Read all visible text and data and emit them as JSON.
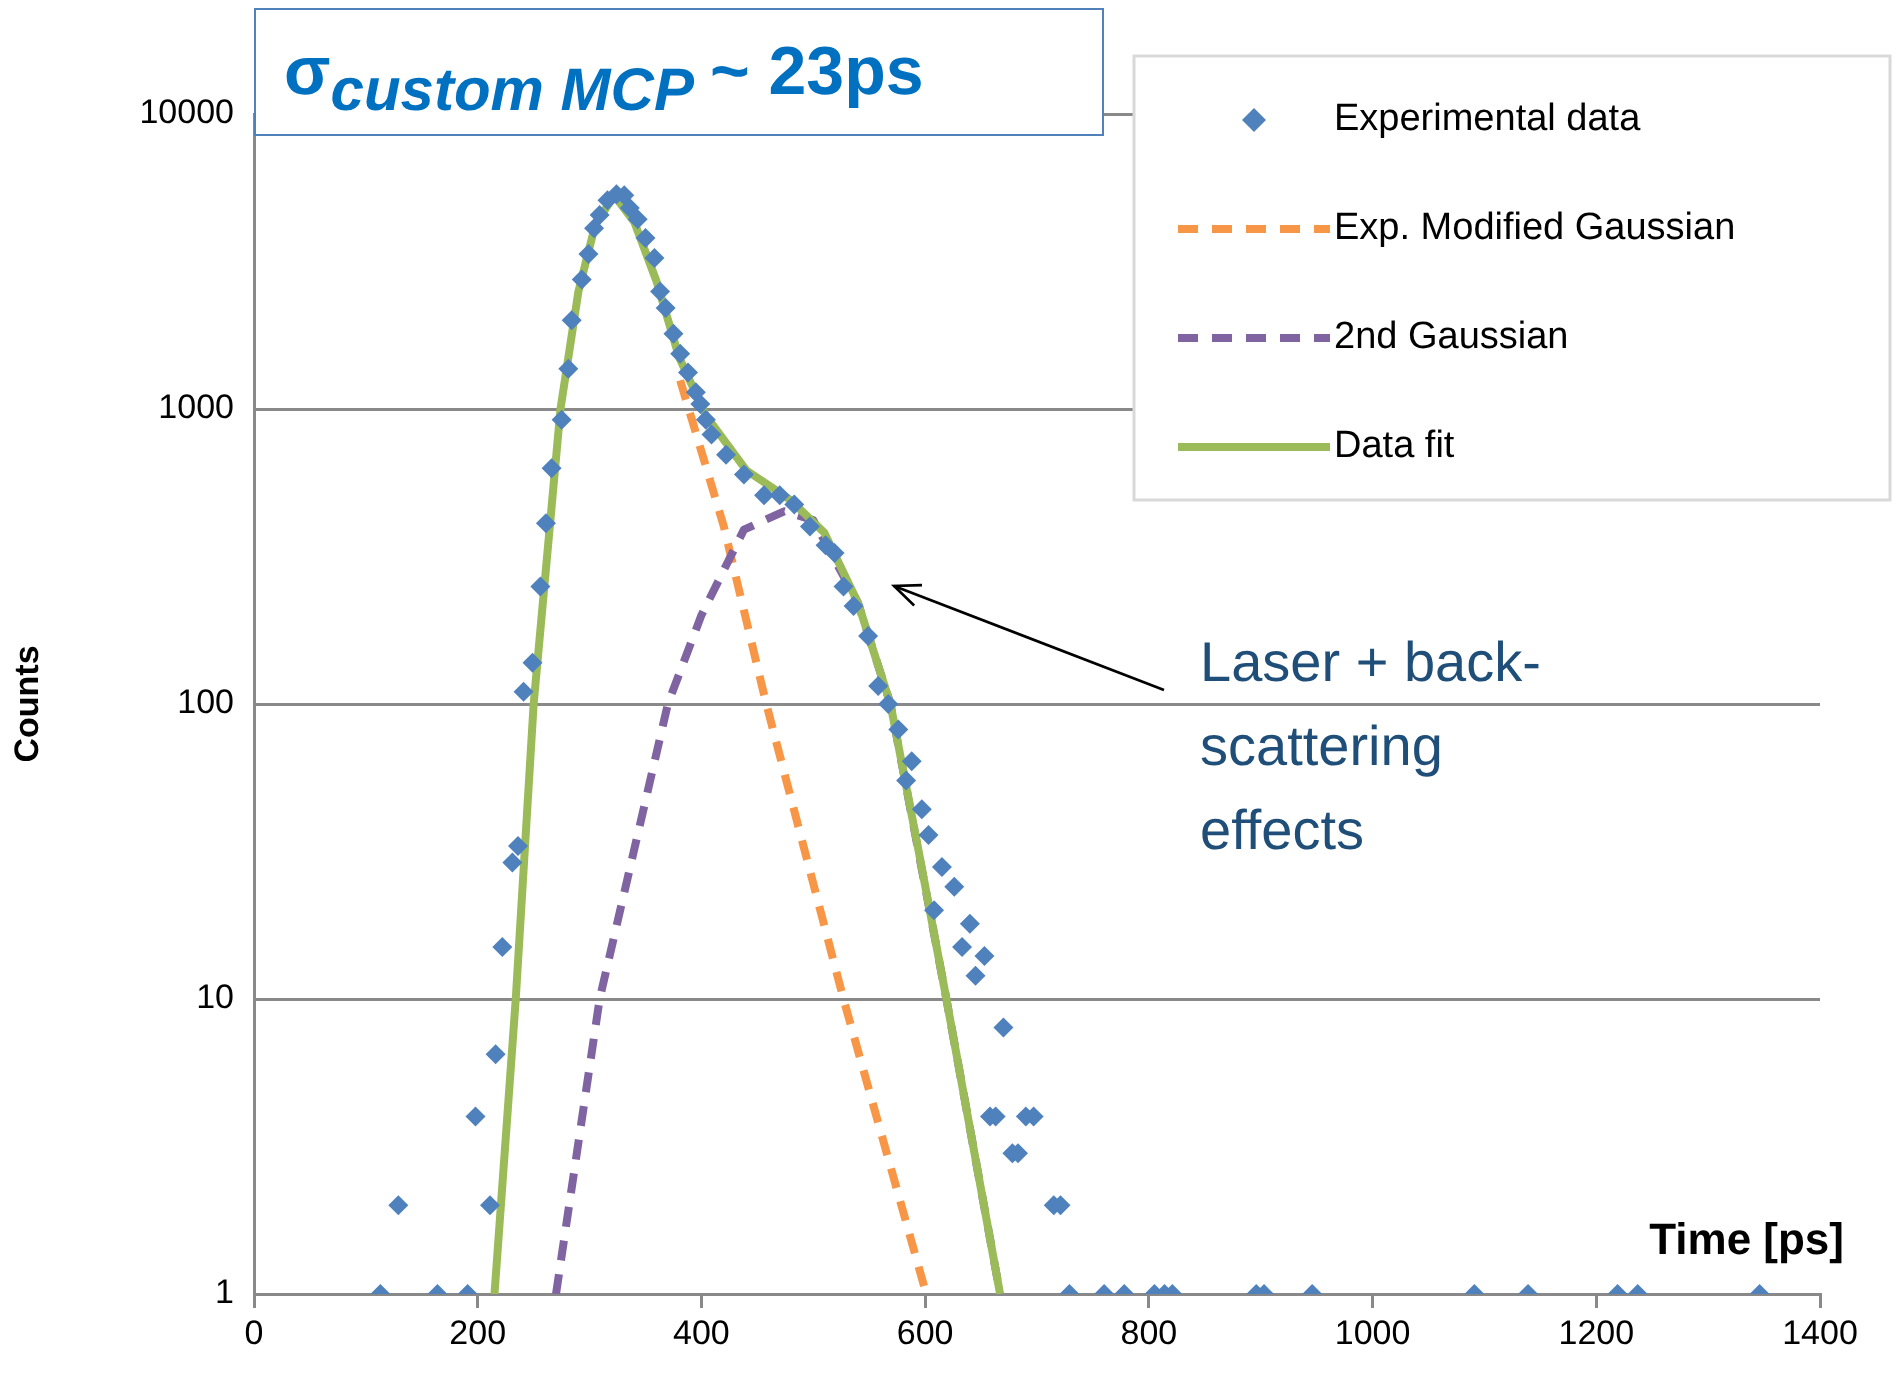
{
  "chart_data": {
    "type": "scatter",
    "xlabel": "Time [ps]",
    "ylabel": "Counts",
    "xlim": [
      0,
      1400
    ],
    "xticks": [
      0,
      200,
      400,
      600,
      800,
      1000,
      1200,
      1400
    ],
    "ylim": [
      1,
      10000
    ],
    "yticks": [
      1,
      10,
      100,
      1000,
      10000
    ],
    "log": "y",
    "grid": "y",
    "legend": "top right",
    "annotations": [
      "σ$_{custom MCP}$ ~ 23ps",
      "Laser + back-scattering effects"
    ],
    "series": [
      {
        "name": "Experimental data",
        "color": "#4f81bd",
        "marker": "diamond",
        "x": [
          113,
          129,
          164,
          191,
          198,
          211,
          216,
          222,
          231,
          236,
          241,
          249,
          256,
          261,
          266,
          275,
          281,
          284,
          293,
          299,
          304,
          309,
          316,
          324,
          331,
          336,
          343,
          350,
          358,
          363,
          368,
          375,
          381,
          388,
          395,
          399,
          404,
          409,
          422,
          438,
          456,
          470,
          483,
          497,
          511,
          519,
          527,
          536,
          549,
          558,
          567,
          576,
          588,
          583,
          597,
          603,
          615,
          626,
          608,
          640,
          633,
          653,
          645,
          670,
          658,
          663,
          690,
          697,
          678,
          683,
          715,
          721,
          729,
          760,
          778,
          805,
          814,
          821,
          896,
          903,
          946,
          1091,
          1139,
          1219,
          1237,
          1346
        ],
        "values": [
          1,
          2,
          1,
          1,
          4,
          2,
          6.5,
          15,
          29,
          33,
          110,
          138,
          250,
          410,
          630,
          920,
          1370,
          2000,
          2750,
          3350,
          4100,
          4550,
          5100,
          5350,
          5300,
          4800,
          4400,
          3800,
          3250,
          2500,
          2200,
          1800,
          1540,
          1330,
          1140,
          1040,
          920,
          820,
          700,
          600,
          510,
          510,
          475,
          400,
          345,
          325,
          250,
          215,
          170,
          115,
          100,
          82,
          64,
          55,
          44,
          36,
          28,
          24,
          20,
          18,
          15,
          14,
          12,
          8,
          4,
          4,
          4,
          4,
          3,
          3,
          2,
          2,
          1,
          1,
          1,
          1,
          1,
          1,
          1,
          1,
          1,
          1,
          1,
          1,
          1,
          1
        ]
      },
      {
        "name": "Exp. Modified Gaussian",
        "type": "line",
        "color": "#f79646",
        "line_style": "dashed",
        "marker": "none",
        "x": [
          381,
          420,
          458,
          527,
          601
        ],
        "values": [
          1250,
          400,
          100,
          10,
          1
        ]
      },
      {
        "name": "2nd Gaussian",
        "type": "line",
        "color": "#8064a2",
        "line_style": "dashed",
        "marker": "none",
        "x": [
          270,
          309,
          370,
          400,
          438,
          474,
          500,
          540,
          569,
          619,
          667
        ],
        "values": [
          1,
          10,
          100,
          200,
          390,
          450,
          420,
          220,
          100,
          10,
          1
        ]
      },
      {
        "name": "Data fit",
        "type": "line",
        "color": "#9bbb59",
        "line_style": "solid",
        "marker": "none",
        "x": [
          215,
          234,
          250,
          274,
          290,
          305,
          322,
          340,
          360,
          380,
          404,
          440,
          480,
          510,
          540,
          569,
          594,
          619,
          667
        ],
        "values": [
          1,
          10,
          100,
          1000,
          2500,
          4200,
          5300,
          4300,
          2700,
          1500,
          950,
          620,
          490,
          380,
          220,
          100,
          32,
          10,
          1
        ]
      }
    ]
  }
}
